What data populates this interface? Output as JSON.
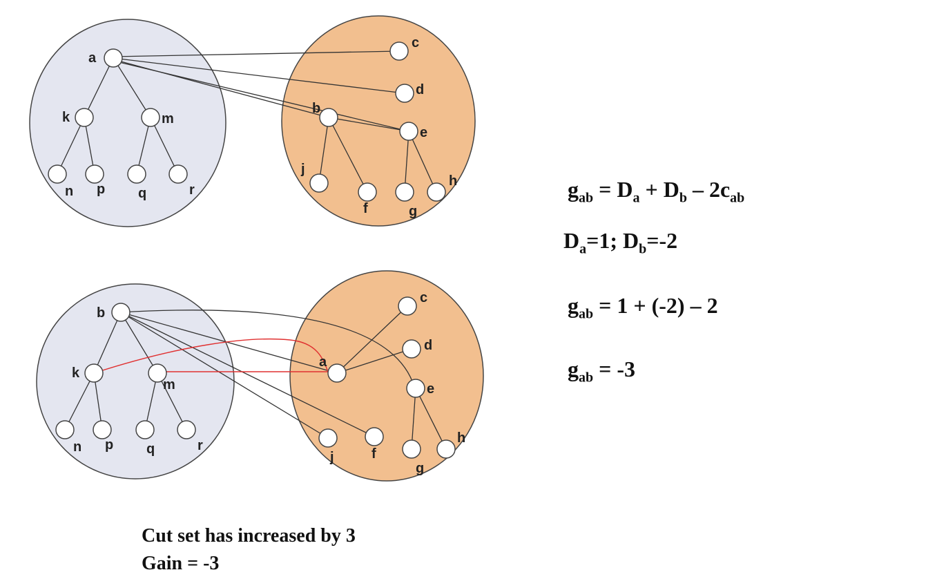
{
  "diagram_top": {
    "left_nodes": [
      "a",
      "k",
      "m",
      "n",
      "p",
      "q",
      "r"
    ],
    "right_nodes": [
      "c",
      "d",
      "b",
      "e",
      "j",
      "f",
      "g",
      "h"
    ]
  },
  "diagram_bottom": {
    "left_nodes": [
      "b",
      "k",
      "m",
      "n",
      "p",
      "q",
      "r"
    ],
    "right_nodes": [
      "c",
      "d",
      "a",
      "e",
      "j",
      "f",
      "g",
      "h"
    ]
  },
  "equations": {
    "eq1": {
      "g": "g",
      "g_sub": "ab",
      "eq": " = D",
      "da_sub": "a",
      "plus": " + D",
      "db_sub": "b",
      "minus": " – 2c",
      "c_sub": "ab"
    },
    "eq2": {
      "d": "D",
      "da_sub": "a",
      "da_val": "=1; D",
      "db_sub": "b",
      "db_val": "=-2"
    },
    "eq3": {
      "g": "g",
      "g_sub": "ab",
      "rest": " = 1 + (-2) – 2"
    },
    "eq4": {
      "g": "g",
      "g_sub": "ab",
      "rest": " = -3"
    }
  },
  "caption": {
    "line1": "Cut set has increased by 3",
    "line2": "Gain = -3"
  },
  "colors": {
    "left_partition_fill": "#e4e6f0",
    "right_partition_fill": "#f2bf8f",
    "cut_edge_red": "#e03030"
  }
}
